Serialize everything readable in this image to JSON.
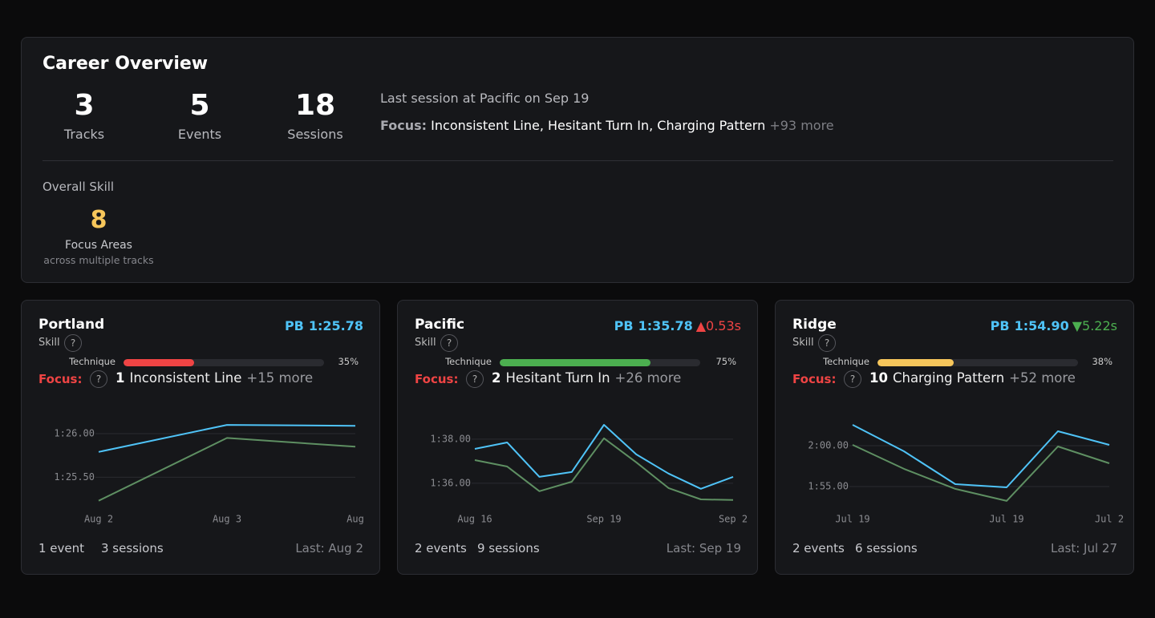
{
  "overview": {
    "title": "Career Overview",
    "stats": [
      {
        "value": 3,
        "label": "Tracks"
      },
      {
        "value": 5,
        "label": "Events"
      },
      {
        "value": 18,
        "label": "Sessions"
      }
    ],
    "last_session": "Last session at Pacific on Sep 19",
    "focus": {
      "label": "Focus:",
      "items": "Inconsistent Line, Hesitant Turn In, Charging Pattern",
      "more": "+93 more"
    },
    "skill_heading": "Overall Skill",
    "focus_areas": {
      "value": 8,
      "label": "Focus Areas",
      "note": "across multiple tracks"
    }
  },
  "skill_label": "Skill",
  "help_icon": "?",
  "focus_label": "Focus:",
  "pb_label": "PB",
  "cards": [
    {
      "name": "Portland",
      "pb": "1:25.78",
      "skill": {
        "label": "Technique",
        "value": 35,
        "value_label": "35%",
        "color": "#ef4444",
        "xlim": [
          0,
          100
        ]
      },
      "focus": {
        "count": 1,
        "name": "Inconsistent Line",
        "more": "+15 more"
      },
      "chart": {
        "type": "line",
        "categories": [
          "Aug 2",
          "Aug 3",
          "Aug"
        ],
        "series": [
          {
            "color": "#4fc3f7",
            "values": [
              85.79,
              86.1,
              86.09
            ]
          },
          {
            "color": "#5e8f62",
            "values": [
              85.23,
              85.95,
              85.85
            ]
          }
        ],
        "ylim": [
          85.19,
          86.23
        ],
        "yticks": [
          {
            "value": 85.5,
            "label": "1:25.50"
          },
          {
            "value": 86,
            "label": "1:26.00"
          }
        ],
        "grid": true
      },
      "events": "1 event",
      "sessions": "3 sessions",
      "last": "Last: Aug 2"
    },
    {
      "name": "Pacific",
      "pb": "1:35.78",
      "delta": "▲0.53s",
      "delta_color": "#ef4444",
      "skill": {
        "label": "Technique",
        "value": 75,
        "value_label": "75%",
        "color": "#4caf50",
        "xlim": [
          0,
          100
        ]
      },
      "focus": {
        "count": 2,
        "name": "Hesitant Turn In",
        "more": "+26 more"
      },
      "chart": {
        "type": "line",
        "categories": [
          "Aug 16",
          null,
          null,
          null,
          "Sep 19",
          null,
          null,
          null,
          "Sep 2"
        ],
        "series": [
          {
            "color": "#4fc3f7",
            "values": [
              97.56,
              97.85,
              96.29,
              96.51,
              98.65,
              97.31,
              96.44,
              95.75,
              96.29
            ]
          },
          {
            "color": "#5e8f62",
            "values": [
              97.05,
              96.76,
              95.64,
              96.07,
              98.04,
              96.95,
              95.78,
              95.27,
              95.24
            ]
          }
        ],
        "ylim": [
          95.05,
          99.16
        ],
        "yticks": [
          {
            "value": 96,
            "label": "1:36.00"
          },
          {
            "value": 98,
            "label": "1:38.00"
          }
        ],
        "grid": true
      },
      "events": "2 events",
      "sessions": "9 sessions",
      "last": "Last: Sep 19"
    },
    {
      "name": "Ridge",
      "pb": "1:54.90",
      "delta": "▼5.22s",
      "delta_color": "#4caf50",
      "skill": {
        "label": "Technique",
        "value": 38,
        "value_label": "38%",
        "color": "#f6c65b",
        "xlim": [
          0,
          100
        ]
      },
      "focus": {
        "count": 10,
        "name": "Charging Pattern",
        "more": "+52 more"
      },
      "chart": {
        "type": "line",
        "categories": [
          "Jul 19",
          null,
          null,
          "Jul 19",
          null,
          "Jul 2"
        ],
        "series": [
          {
            "color": "#4fc3f7",
            "values": [
              122.55,
              119.31,
              115.29,
              114.9,
              121.76,
              120.1
            ]
          },
          {
            "color": "#5e8f62",
            "values": [
              120.1,
              117.16,
              114.71,
              113.24,
              119.9,
              117.84
            ]
          }
        ],
        "ylim": [
          112.84,
          123.92
        ],
        "yticks": [
          {
            "value": 115,
            "label": "1:55.00"
          },
          {
            "value": 120,
            "label": "2:00.00"
          }
        ],
        "grid": true
      },
      "events": "2 events",
      "sessions": "6 sessions",
      "last": "Last: Jul 27"
    }
  ]
}
